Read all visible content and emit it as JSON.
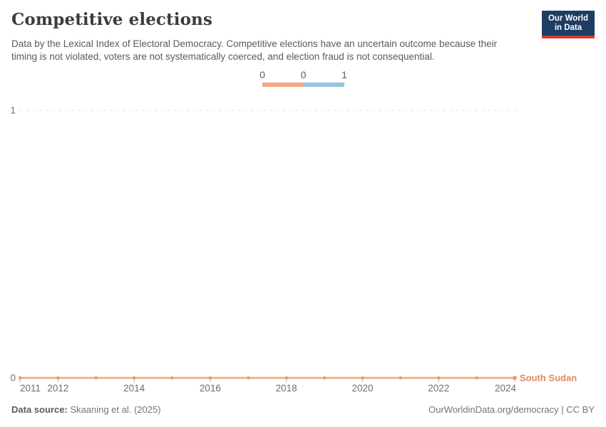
{
  "header": {
    "title": "Competitive elections",
    "subtitle": "Data by the Lexical Index of Electoral Democracy. Competitive elections have an uncertain outcome because their timing is not violated, voters are not systematically coerced, and election fraud is not consequential.",
    "logo": {
      "line1": "Our World",
      "line2": "in Data",
      "bg_color": "#1d3d63",
      "accent_color": "#dc352e"
    }
  },
  "legend": {
    "labels": [
      "0",
      "0",
      "1"
    ],
    "segments": [
      {
        "value": "0",
        "color": "#f4a582"
      },
      {
        "value": "1",
        "color": "#92c5de"
      }
    ]
  },
  "chart_data": {
    "type": "line",
    "title": "Competitive elections",
    "x": [
      2011,
      2012,
      2013,
      2014,
      2015,
      2016,
      2017,
      2018,
      2019,
      2020,
      2021,
      2022,
      2023,
      2024
    ],
    "series": [
      {
        "name": "South Sudan",
        "values": [
          0,
          0,
          0,
          0,
          0,
          0,
          0,
          0,
          0,
          0,
          0,
          0,
          0,
          0
        ],
        "line_color": "#f2a483",
        "marker_color": "#ee9a74",
        "label_color": "#dd8762"
      }
    ],
    "xlim": [
      2011,
      2024
    ],
    "ylim": [
      0,
      1
    ],
    "yticks": [
      0,
      1
    ],
    "xtick_labels": [
      2011,
      2012,
      2014,
      2016,
      2018,
      2020,
      2022,
      2024
    ],
    "grid": "dashed-horizontal",
    "grid_color": "#dcdcdc",
    "axis_label_color": "#6e6e6e",
    "tick_color": "#b0b0b0",
    "legend_position": "top-center"
  },
  "footer": {
    "source_label": "Data source:",
    "source_value": " Skaaning et al. (2025)",
    "rights": "OurWorldinData.org/democracy | CC BY"
  }
}
